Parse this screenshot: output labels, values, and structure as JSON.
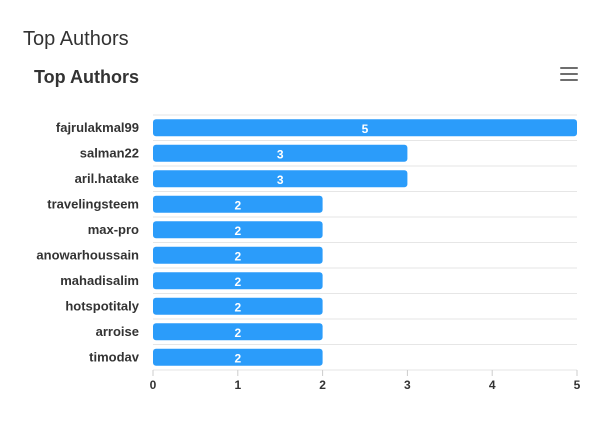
{
  "panel": {
    "title": "Top Authors"
  },
  "menu_icon": "hamburger-menu-icon",
  "colors": {
    "bar": "#2b9cfa",
    "grid": "#e6e6e6",
    "text": "#333333"
  },
  "chart_data": {
    "type": "bar",
    "orientation": "horizontal",
    "title": "Top Authors",
    "categories": [
      "fajrulakmal99",
      "salman22",
      "aril.hatake",
      "travelingsteem",
      "max-pro",
      "anowarhoussain",
      "mahadisalim",
      "hotspotitaly",
      "arroise",
      "timodav"
    ],
    "values": [
      5,
      3,
      3,
      2,
      2,
      2,
      2,
      2,
      2,
      2
    ],
    "data_labels": [
      "5",
      "3",
      "3",
      "2",
      "2",
      "2",
      "2",
      "2",
      "2",
      "2"
    ],
    "xlim": [
      0,
      5
    ],
    "x_ticks": [
      "0",
      "1",
      "2",
      "3",
      "4",
      "5"
    ],
    "grid": true,
    "legend": false
  }
}
